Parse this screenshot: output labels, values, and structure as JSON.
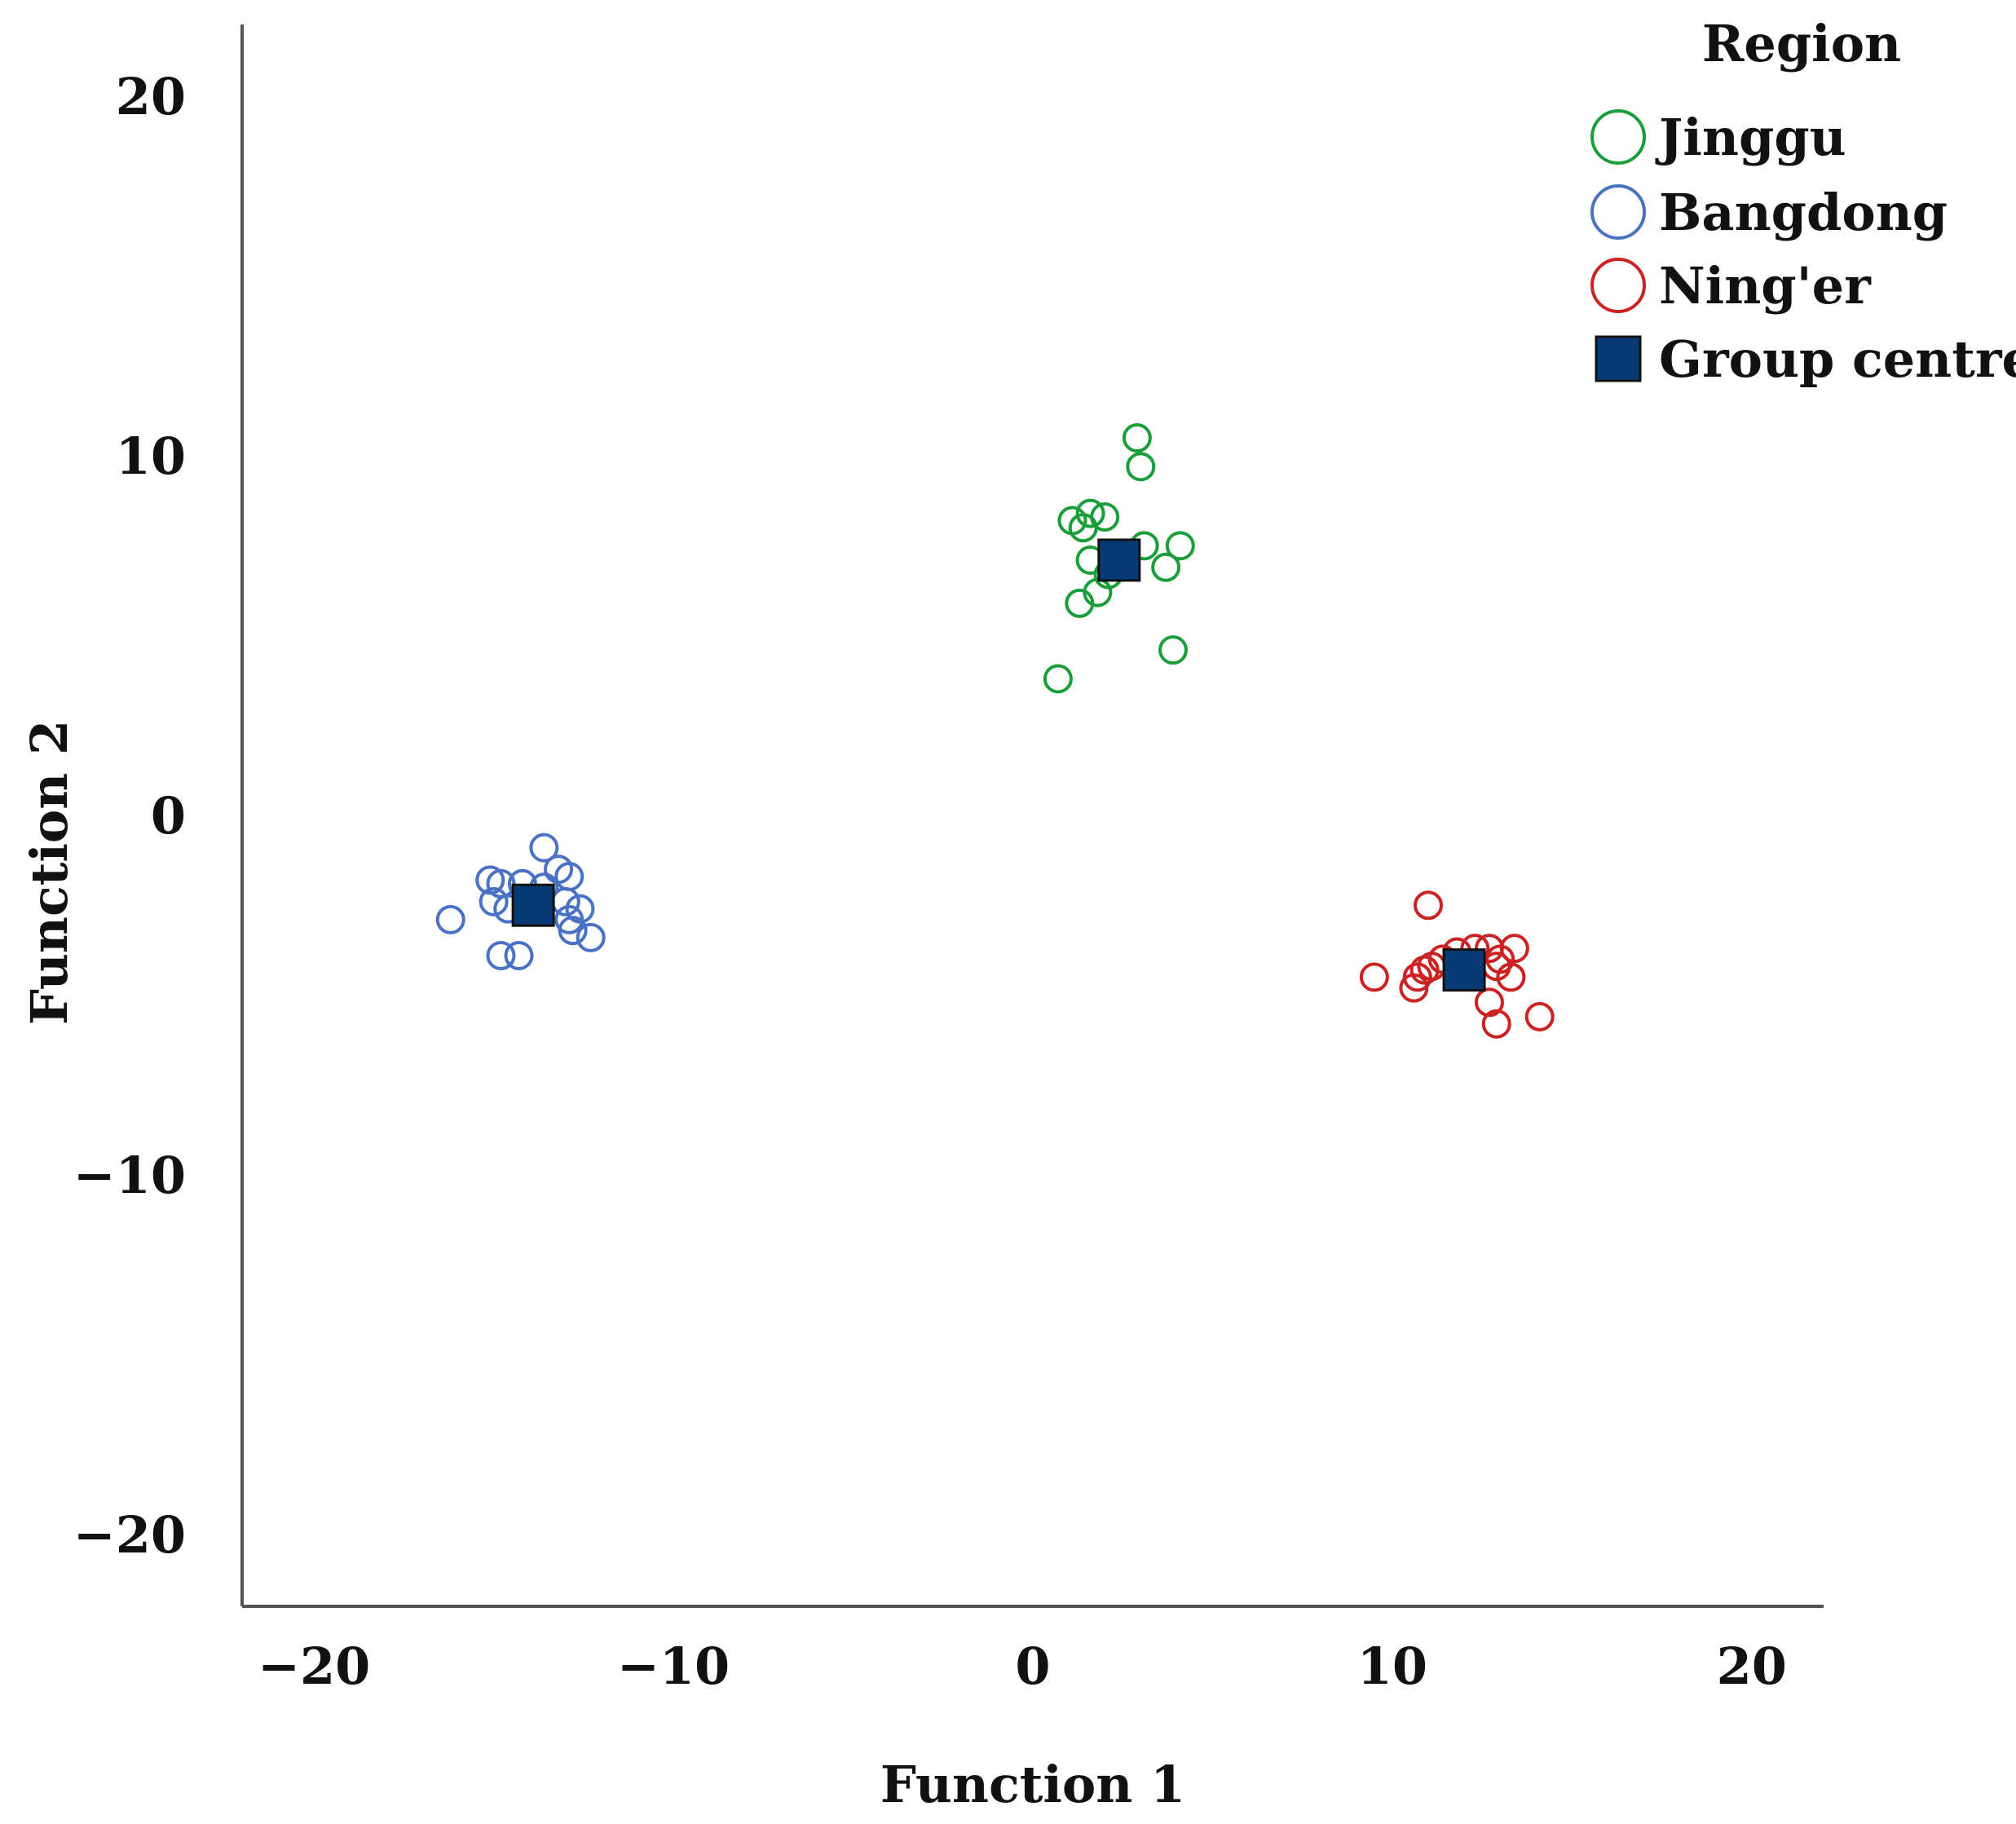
{
  "chart_data": {
    "type": "scatter",
    "title": "",
    "xlabel": "Function 1",
    "ylabel": "Function 2",
    "xlim": [
      -22,
      22
    ],
    "ylim": [
      -22,
      22
    ],
    "xticks": [
      -20,
      -10,
      0,
      10,
      20
    ],
    "yticks": [
      20,
      10,
      0,
      -10,
      -20
    ],
    "xtick_labels": [
      "−20",
      "−10",
      "0",
      "10",
      "20"
    ],
    "ytick_labels": [
      "20",
      "10",
      "0",
      "−10",
      "−20"
    ],
    "grid": false,
    "legend": {
      "title": "Region",
      "position": "top-right",
      "entries": [
        "Jinggu",
        "Bangdong",
        "Ning'er",
        "Group centre"
      ]
    },
    "series": [
      {
        "name": "Jinggu",
        "color": "#1a9e3a",
        "marker": "open-circle",
        "points": [
          [
            2.9,
            10.5
          ],
          [
            3.0,
            9.7
          ],
          [
            1.1,
            8.2
          ],
          [
            1.6,
            8.4
          ],
          [
            2.0,
            8.3
          ],
          [
            1.4,
            8.0
          ],
          [
            3.1,
            7.5
          ],
          [
            4.1,
            7.5
          ],
          [
            1.6,
            7.1
          ],
          [
            2.4,
            7.2
          ],
          [
            3.7,
            6.9
          ],
          [
            2.1,
            6.7
          ],
          [
            1.8,
            6.2
          ],
          [
            1.3,
            5.9
          ],
          [
            3.9,
            4.6
          ],
          [
            0.7,
            3.8
          ]
        ]
      },
      {
        "name": "Bangdong",
        "color": "#4a72c4",
        "marker": "open-circle",
        "points": [
          [
            -13.6,
            -0.9
          ],
          [
            -13.2,
            -1.5
          ],
          [
            -12.9,
            -1.7
          ],
          [
            -15.1,
            -1.8
          ],
          [
            -14.8,
            -1.9
          ],
          [
            -14.2,
            -1.9
          ],
          [
            -13.6,
            -2.0
          ],
          [
            -15.0,
            -2.4
          ],
          [
            -13.0,
            -2.4
          ],
          [
            -12.6,
            -2.6
          ],
          [
            -14.6,
            -2.6
          ],
          [
            -12.9,
            -2.9
          ],
          [
            -16.2,
            -2.9
          ],
          [
            -12.8,
            -3.2
          ],
          [
            -12.3,
            -3.4
          ],
          [
            -14.8,
            -3.9
          ],
          [
            -14.3,
            -3.9
          ]
        ]
      },
      {
        "name": "Ning'er",
        "color": "#cc2222",
        "marker": "open-circle",
        "points": [
          [
            11.0,
            -2.5
          ],
          [
            12.3,
            -3.7
          ],
          [
            12.7,
            -3.7
          ],
          [
            13.4,
            -3.7
          ],
          [
            11.8,
            -3.8
          ],
          [
            13.0,
            -4.0
          ],
          [
            11.4,
            -4.0
          ],
          [
            11.1,
            -4.2
          ],
          [
            12.9,
            -4.2
          ],
          [
            10.9,
            -4.3
          ],
          [
            10.7,
            -4.5
          ],
          [
            9.5,
            -4.5
          ],
          [
            13.3,
            -4.5
          ],
          [
            10.6,
            -4.8
          ],
          [
            12.7,
            -5.2
          ],
          [
            14.1,
            -5.6
          ],
          [
            12.9,
            -5.8
          ]
        ]
      }
    ],
    "group_centres": {
      "name": "Group centre",
      "color": "#0a3a73",
      "marker": "filled-square",
      "points": [
        {
          "region": "Jinggu",
          "x": 2.4,
          "y": 7.1
        },
        {
          "region": "Bangdong",
          "x": -13.9,
          "y": -2.5
        },
        {
          "region": "Ning'er",
          "x": 12.0,
          "y": -4.3
        }
      ]
    }
  }
}
